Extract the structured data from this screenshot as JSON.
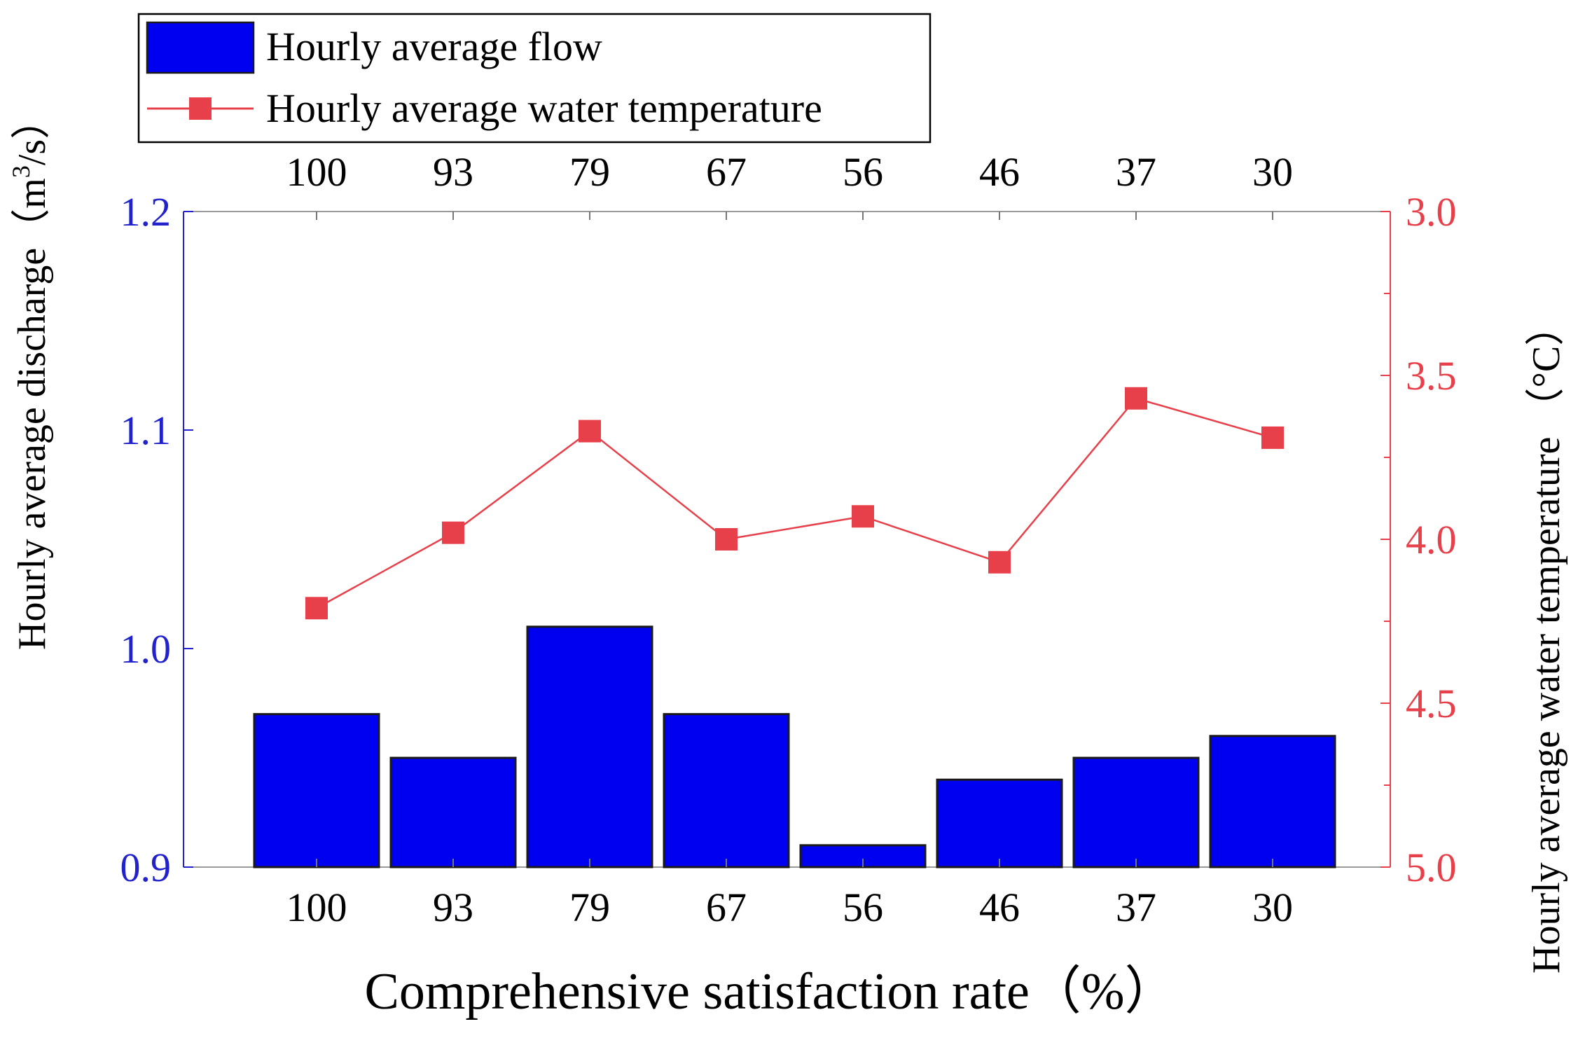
{
  "chart_data": {
    "type": "bar",
    "categories": [
      "100",
      "93",
      "79",
      "67",
      "56",
      "46",
      "37",
      "30"
    ],
    "xlabel": "Comprehensive satisfaction rate（%）",
    "series": [
      {
        "name": "Hourly average flow",
        "type": "bar",
        "axis": "left",
        "values": [
          0.97,
          0.95,
          1.01,
          0.97,
          0.91,
          0.94,
          0.95,
          0.96
        ]
      },
      {
        "name": "Hourly average water temperature",
        "type": "line",
        "axis": "right",
        "values": [
          4.21,
          3.98,
          3.67,
          4.0,
          3.93,
          4.07,
          3.57,
          3.69
        ]
      }
    ],
    "y_left": {
      "label_main": "Hourly average discharge（m",
      "label_sup": "3",
      "label_end": "/s）",
      "ylim": [
        0.9,
        1.2
      ],
      "ticks": [
        "0.9",
        "1.0",
        "1.1",
        "1.2"
      ]
    },
    "y_right": {
      "label": "Hourly average water temperature （°C）",
      "ylim": [
        5.0,
        3.0
      ],
      "inverted": true,
      "ticks": [
        "3.0",
        "3.5",
        "4.0",
        "4.5",
        "5.0"
      ]
    },
    "legend": {
      "position": "top-left",
      "entries": [
        "Hourly average flow",
        "Hourly average water temperature"
      ]
    },
    "grid": false
  },
  "colors": {
    "bar_fill": "#0000f0",
    "bar_edge": "#1a1a1a",
    "line": "#e8404a",
    "left_axis": "#2222cc",
    "right_axis": "#e8404a",
    "text": "#000000"
  }
}
